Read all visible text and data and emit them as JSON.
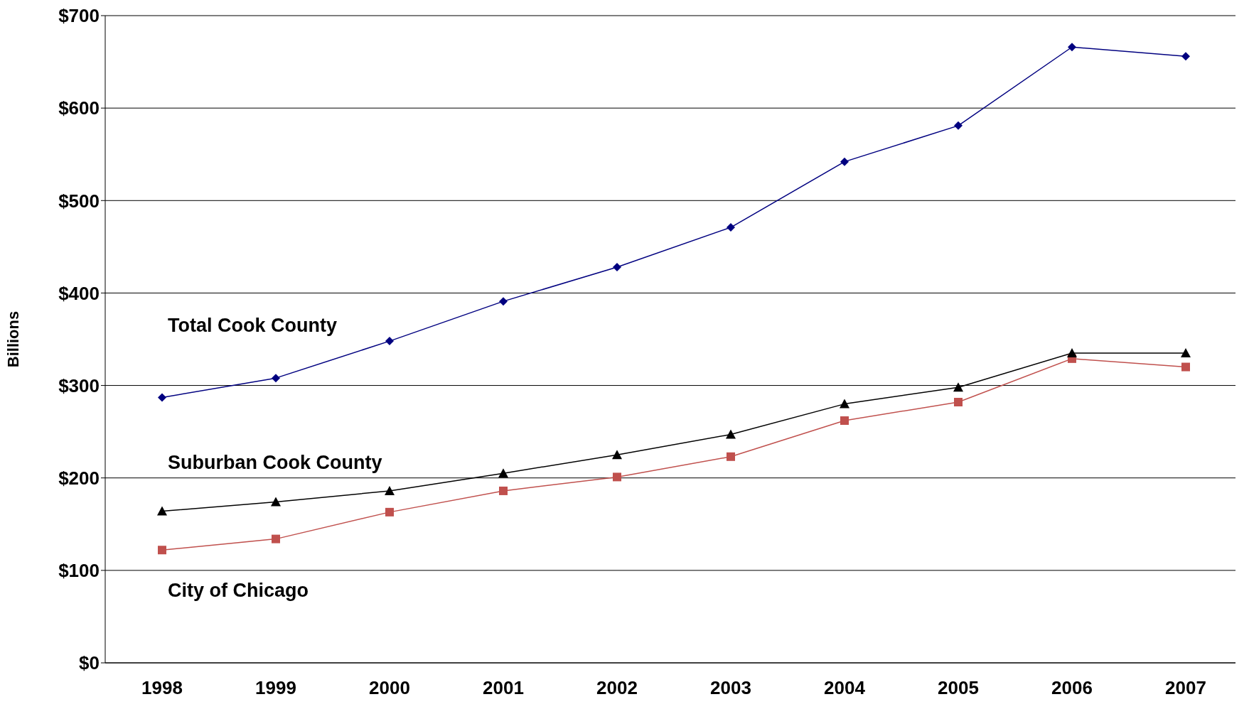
{
  "chart_data": {
    "type": "line",
    "ylabel": "Billions",
    "categories": [
      "1998",
      "1999",
      "2000",
      "2001",
      "2002",
      "2003",
      "2004",
      "2005",
      "2006",
      "2007"
    ],
    "series": [
      {
        "name": "Total Cook County",
        "color": "#000080",
        "marker": "diamond",
        "values": [
          287,
          308,
          348,
          391,
          428,
          471,
          542,
          581,
          666,
          656
        ]
      },
      {
        "name": "Suburban Cook County",
        "color": "#000000",
        "marker": "triangle",
        "values": [
          164,
          174,
          186,
          205,
          225,
          247,
          280,
          298,
          335,
          335
        ]
      },
      {
        "name": "City of Chicago",
        "color": "#c0504d",
        "marker": "square",
        "values": [
          122,
          134,
          163,
          186,
          201,
          223,
          262,
          282,
          329,
          320
        ]
      }
    ],
    "ylim": [
      0,
      700
    ],
    "yticks": [
      {
        "value": 0,
        "label": "$0"
      },
      {
        "value": 100,
        "label": "$100"
      },
      {
        "value": 200,
        "label": "$200"
      },
      {
        "value": 300,
        "label": "$300"
      },
      {
        "value": 400,
        "label": "$400"
      },
      {
        "value": 500,
        "label": "$500"
      },
      {
        "value": 600,
        "label": "$600"
      },
      {
        "value": 700,
        "label": "$700"
      }
    ],
    "grid": "y",
    "legend": false,
    "line_style": "solid"
  }
}
